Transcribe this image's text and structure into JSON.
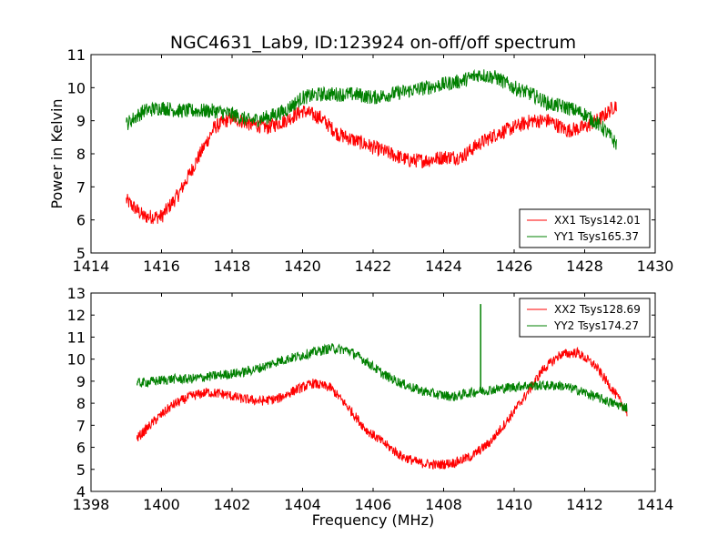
{
  "title": "NGC4631_Lab9, ID:123924 on-off/off spectrum",
  "ylabel": "Power in Kelvin",
  "xlabel": "Frequency (MHz)",
  "colors": {
    "XX": "#ff0000",
    "YY": "#008000",
    "axes": "#000000",
    "background": "#ffffff"
  },
  "chart_data": [
    {
      "type": "line",
      "xlim": [
        1414,
        1430
      ],
      "ylim": [
        5,
        11
      ],
      "xticks": [
        "1414",
        "1416",
        "1418",
        "1420",
        "1422",
        "1424",
        "1426",
        "1428",
        "1430"
      ],
      "yticks": [
        "5",
        "6",
        "7",
        "8",
        "9",
        "10",
        "11"
      ],
      "legend_position": "lower-right",
      "series": [
        {
          "name": "XX1 Tsys142.01",
          "color": "#ff0000",
          "x": [
            1415.0,
            1415.5,
            1416.0,
            1416.5,
            1417.0,
            1417.5,
            1418.0,
            1418.5,
            1419.0,
            1419.5,
            1420.0,
            1420.5,
            1421.0,
            1421.5,
            1422.0,
            1422.5,
            1423.0,
            1423.5,
            1424.0,
            1424.5,
            1425.0,
            1425.5,
            1426.0,
            1426.5,
            1427.0,
            1427.5,
            1428.0,
            1428.5,
            1428.9
          ],
          "y": [
            6.6,
            6.1,
            6.1,
            6.8,
            7.8,
            8.8,
            9.1,
            8.9,
            8.8,
            9.0,
            9.3,
            9.1,
            8.6,
            8.4,
            8.2,
            8.0,
            7.8,
            7.8,
            7.9,
            7.9,
            8.3,
            8.6,
            8.8,
            9.0,
            9.0,
            8.7,
            8.8,
            9.1,
            9.5
          ]
        },
        {
          "name": "YY1 Tsys165.37",
          "color": "#008000",
          "x": [
            1415.0,
            1415.5,
            1416.0,
            1416.5,
            1417.0,
            1417.5,
            1418.0,
            1418.5,
            1419.0,
            1419.5,
            1420.0,
            1420.5,
            1421.0,
            1421.5,
            1422.0,
            1422.5,
            1423.0,
            1423.5,
            1424.0,
            1424.5,
            1425.0,
            1425.5,
            1426.0,
            1426.5,
            1427.0,
            1427.5,
            1428.0,
            1428.5,
            1428.9
          ],
          "y": [
            8.9,
            9.3,
            9.4,
            9.3,
            9.3,
            9.3,
            9.2,
            9.0,
            9.1,
            9.3,
            9.7,
            9.8,
            9.8,
            9.8,
            9.7,
            9.8,
            9.9,
            10.0,
            10.1,
            10.2,
            10.4,
            10.3,
            10.0,
            9.8,
            9.5,
            9.4,
            9.2,
            8.8,
            8.3
          ]
        }
      ]
    },
    {
      "type": "line",
      "xlim": [
        1398,
        1414
      ],
      "ylim": [
        4,
        13
      ],
      "xticks": [
        "1398",
        "1400",
        "1402",
        "1404",
        "1406",
        "1408",
        "1410",
        "1412",
        "1414"
      ],
      "yticks": [
        "4",
        "5",
        "6",
        "7",
        "8",
        "9",
        "10",
        "11",
        "12",
        "13"
      ],
      "legend_position": "upper-right",
      "series": [
        {
          "name": "XX2 Tsys128.69",
          "color": "#ff0000",
          "x": [
            1399.3,
            1399.8,
            1400.3,
            1400.8,
            1401.3,
            1401.8,
            1402.3,
            1402.8,
            1403.3,
            1403.8,
            1404.3,
            1404.8,
            1405.3,
            1405.8,
            1406.3,
            1406.8,
            1407.3,
            1407.8,
            1408.3,
            1408.8,
            1409.3,
            1409.8,
            1410.3,
            1410.8,
            1411.3,
            1411.8,
            1412.3,
            1412.8,
            1413.2
          ],
          "y": [
            6.4,
            7.2,
            7.9,
            8.3,
            8.5,
            8.4,
            8.2,
            8.1,
            8.2,
            8.6,
            8.9,
            8.7,
            7.8,
            6.8,
            6.2,
            5.6,
            5.3,
            5.2,
            5.3,
            5.6,
            6.2,
            7.2,
            8.3,
            9.5,
            10.2,
            10.3,
            9.7,
            8.6,
            7.6
          ]
        },
        {
          "name": "YY2 Tsys174.27",
          "color": "#008000",
          "x": [
            1399.3,
            1399.8,
            1400.3,
            1400.8,
            1401.3,
            1401.8,
            1402.3,
            1402.8,
            1403.3,
            1403.8,
            1404.3,
            1404.8,
            1405.3,
            1405.8,
            1406.3,
            1406.8,
            1407.3,
            1407.8,
            1408.3,
            1408.8,
            1409.05,
            1409.3,
            1409.8,
            1410.3,
            1410.8,
            1411.3,
            1411.8,
            1412.3,
            1412.8,
            1413.2
          ],
          "y": [
            8.9,
            9.0,
            9.1,
            9.1,
            9.2,
            9.3,
            9.4,
            9.6,
            9.9,
            10.1,
            10.3,
            10.5,
            10.4,
            9.9,
            9.3,
            8.9,
            8.6,
            8.4,
            8.3,
            8.5,
            12.5,
            8.6,
            8.7,
            8.8,
            8.8,
            8.8,
            8.6,
            8.3,
            8.0,
            7.8
          ]
        }
      ]
    }
  ]
}
